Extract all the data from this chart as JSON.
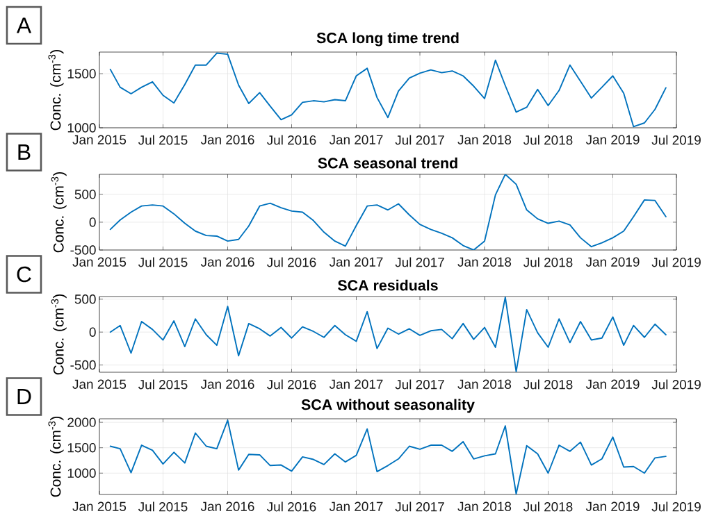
{
  "chart_data": [
    {
      "type": "line",
      "title": "SCA long time trend",
      "ylabel": "Conc. (cm$^{-3}$)",
      "annotations": [
        "A"
      ],
      "color": "#0072bd",
      "grid": true,
      "x": [
        "2015-02",
        "2015-03",
        "2015-04",
        "2015-05",
        "2015-06",
        "2015-07",
        "2015-08",
        "2015-09",
        "2015-10",
        "2015-11",
        "2015-12",
        "2016-01",
        "2016-02",
        "2016-03",
        "2016-04",
        "2016-05",
        "2016-06",
        "2016-07",
        "2016-08",
        "2016-09",
        "2016-10",
        "2016-11",
        "2016-12",
        "2017-01",
        "2017-02",
        "2017-03",
        "2017-04",
        "2017-05",
        "2017-06",
        "2017-07",
        "2017-08",
        "2017-09",
        "2017-10",
        "2017-11",
        "2017-12",
        "2018-01",
        "2018-02",
        "2018-03",
        "2018-04",
        "2018-05",
        "2018-06",
        "2018-07",
        "2018-08",
        "2018-09",
        "2018-10",
        "2018-11",
        "2018-12",
        "2019-01",
        "2019-02",
        "2019-03",
        "2019-04",
        "2019-05",
        "2019-06"
      ],
      "values": [
        1540,
        1375,
        1315,
        1375,
        1425,
        1300,
        1230,
        1400,
        1580,
        1580,
        1690,
        1680,
        1395,
        1225,
        1325,
        1200,
        1075,
        1120,
        1235,
        1250,
        1240,
        1260,
        1250,
        1480,
        1550,
        1280,
        1095,
        1340,
        1460,
        1505,
        1535,
        1510,
        1525,
        1480,
        1385,
        1270,
        1625,
        1390,
        1145,
        1190,
        1355,
        1205,
        1345,
        1580,
        1430,
        1275,
        1375,
        1480,
        1320,
        1010,
        1045,
        1170,
        1370
      ],
      "xlim": [
        "2015-01",
        "2019-07"
      ],
      "xticks": [
        {
          "value": "2015-01",
          "label": "Jan 2015"
        },
        {
          "value": "2015-07",
          "label": "Jul 2015"
        },
        {
          "value": "2016-01",
          "label": "Jan 2016"
        },
        {
          "value": "2016-07",
          "label": "Jul 2016"
        },
        {
          "value": "2017-01",
          "label": "Jan 2017"
        },
        {
          "value": "2017-07",
          "label": "Jul 2017"
        },
        {
          "value": "2018-01",
          "label": "Jan 2018"
        },
        {
          "value": "2018-07",
          "label": "Jul 2018"
        },
        {
          "value": "2019-01",
          "label": "Jan 2019"
        },
        {
          "value": "2019-07",
          "label": "Jul 2019"
        }
      ],
      "ylim": [
        1000,
        1700
      ],
      "yticks": [
        1000,
        1500
      ]
    },
    {
      "type": "line",
      "title": "SCA seasonal trend",
      "ylabel": "Conc. (cm$^{-3}$)",
      "annotations": [
        "B"
      ],
      "color": "#0072bd",
      "grid": true,
      "x": [
        "2015-02",
        "2015-03",
        "2015-04",
        "2015-05",
        "2015-06",
        "2015-07",
        "2015-08",
        "2015-09",
        "2015-10",
        "2015-11",
        "2015-12",
        "2016-01",
        "2016-02",
        "2016-03",
        "2016-04",
        "2016-05",
        "2016-06",
        "2016-07",
        "2016-08",
        "2016-09",
        "2016-10",
        "2016-11",
        "2016-12",
        "2017-01",
        "2017-02",
        "2017-03",
        "2017-04",
        "2017-05",
        "2017-06",
        "2017-07",
        "2017-08",
        "2017-09",
        "2017-10",
        "2017-11",
        "2017-12",
        "2018-01",
        "2018-02",
        "2018-03",
        "2018-04",
        "2018-05",
        "2018-06",
        "2018-07",
        "2018-08",
        "2018-09",
        "2018-10",
        "2018-11",
        "2018-12",
        "2019-01",
        "2019-02",
        "2019-03",
        "2019-04",
        "2019-05",
        "2019-06"
      ],
      "values": [
        -130,
        40,
        180,
        290,
        310,
        290,
        150,
        -20,
        -160,
        -240,
        -250,
        -340,
        -310,
        -70,
        290,
        340,
        260,
        200,
        180,
        30,
        -180,
        -340,
        -430,
        -60,
        290,
        310,
        220,
        330,
        130,
        -40,
        -130,
        -200,
        -280,
        -420,
        -500,
        -340,
        490,
        860,
        680,
        220,
        60,
        -20,
        20,
        -50,
        -280,
        -440,
        -370,
        -280,
        -160,
        100,
        400,
        390,
        100
      ],
      "xlim": [
        "2015-01",
        "2019-07"
      ],
      "xticks": [
        {
          "value": "2015-01",
          "label": "Jan 2015"
        },
        {
          "value": "2015-07",
          "label": "Jul 2015"
        },
        {
          "value": "2016-01",
          "label": "Jan 2016"
        },
        {
          "value": "2016-07",
          "label": "Jul 2016"
        },
        {
          "value": "2017-01",
          "label": "Jan 2017"
        },
        {
          "value": "2017-07",
          "label": "Jul 2017"
        },
        {
          "value": "2018-01",
          "label": "Jan 2018"
        },
        {
          "value": "2018-07",
          "label": "Jul 2018"
        },
        {
          "value": "2019-01",
          "label": "Jan 2019"
        },
        {
          "value": "2019-07",
          "label": "Jul 2019"
        }
      ],
      "ylim": [
        -500,
        860
      ],
      "yticks": [
        -500,
        0,
        500
      ]
    },
    {
      "type": "line",
      "title": "SCA residuals",
      "ylabel": "Conc. (cm$^{-3}$)",
      "annotations": [
        "C"
      ],
      "color": "#0072bd",
      "grid": true,
      "x": [
        "2015-02",
        "2015-03",
        "2015-04",
        "2015-05",
        "2015-06",
        "2015-07",
        "2015-08",
        "2015-09",
        "2015-10",
        "2015-11",
        "2015-12",
        "2016-01",
        "2016-02",
        "2016-03",
        "2016-04",
        "2016-05",
        "2016-06",
        "2016-07",
        "2016-08",
        "2016-09",
        "2016-10",
        "2016-11",
        "2016-12",
        "2017-01",
        "2017-02",
        "2017-03",
        "2017-04",
        "2017-05",
        "2017-06",
        "2017-07",
        "2017-08",
        "2017-09",
        "2017-10",
        "2017-11",
        "2017-12",
        "2018-01",
        "2018-02",
        "2018-03",
        "2018-04",
        "2018-05",
        "2018-06",
        "2018-07",
        "2018-08",
        "2018-09",
        "2018-10",
        "2018-11",
        "2018-12",
        "2019-01",
        "2019-02",
        "2019-03",
        "2019-04",
        "2019-05",
        "2019-06"
      ],
      "values": [
        0,
        100,
        -320,
        160,
        40,
        -120,
        170,
        -220,
        200,
        -40,
        -200,
        390,
        -360,
        130,
        50,
        -60,
        70,
        -90,
        80,
        10,
        -80,
        100,
        -40,
        -140,
        310,
        -250,
        60,
        -30,
        50,
        -50,
        20,
        40,
        -100,
        130,
        -110,
        70,
        -230,
        530,
        -600,
        340,
        -10,
        -230,
        200,
        -160,
        160,
        -120,
        -90,
        230,
        -200,
        100,
        -80,
        120,
        -40
      ],
      "xlim": [
        "2015-01",
        "2019-07"
      ],
      "xticks": [
        {
          "value": "2015-01",
          "label": "Jan 2015"
        },
        {
          "value": "2015-07",
          "label": "Jul 2015"
        },
        {
          "value": "2016-01",
          "label": "Jan 2016"
        },
        {
          "value": "2016-07",
          "label": "Jul 2016"
        },
        {
          "value": "2017-01",
          "label": "Jan 2017"
        },
        {
          "value": "2017-07",
          "label": "Jul 2017"
        },
        {
          "value": "2018-01",
          "label": "Jan 2018"
        },
        {
          "value": "2018-07",
          "label": "Jul 2018"
        },
        {
          "value": "2019-01",
          "label": "Jan 2019"
        },
        {
          "value": "2019-07",
          "label": "Jul 2019"
        }
      ],
      "ylim": [
        -610,
        540
      ],
      "yticks": [
        -500,
        0,
        500
      ]
    },
    {
      "type": "line",
      "title": "SCA without seasonality",
      "ylabel": "Conc. (cm$^{-3}$)",
      "annotations": [
        "D"
      ],
      "color": "#0072bd",
      "grid": true,
      "x": [
        "2015-02",
        "2015-03",
        "2015-04",
        "2015-05",
        "2015-06",
        "2015-07",
        "2015-08",
        "2015-09",
        "2015-10",
        "2015-11",
        "2015-12",
        "2016-01",
        "2016-02",
        "2016-03",
        "2016-04",
        "2016-05",
        "2016-06",
        "2016-07",
        "2016-08",
        "2016-09",
        "2016-10",
        "2016-11",
        "2016-12",
        "2017-01",
        "2017-02",
        "2017-03",
        "2017-04",
        "2017-05",
        "2017-06",
        "2017-07",
        "2017-08",
        "2017-09",
        "2017-10",
        "2017-11",
        "2017-12",
        "2018-01",
        "2018-02",
        "2018-03",
        "2018-04",
        "2018-05",
        "2018-06",
        "2018-07",
        "2018-08",
        "2018-09",
        "2018-10",
        "2018-11",
        "2018-12",
        "2019-01",
        "2019-02",
        "2019-03",
        "2019-04",
        "2019-05",
        "2019-06"
      ],
      "values": [
        1530,
        1480,
        1010,
        1550,
        1450,
        1180,
        1410,
        1200,
        1790,
        1530,
        1480,
        2040,
        1060,
        1370,
        1360,
        1150,
        1160,
        1040,
        1320,
        1270,
        1170,
        1380,
        1220,
        1350,
        1870,
        1030,
        1150,
        1280,
        1530,
        1470,
        1550,
        1550,
        1430,
        1620,
        1280,
        1340,
        1380,
        1930,
        590,
        1540,
        1380,
        1000,
        1550,
        1430,
        1610,
        1160,
        1280,
        1710,
        1120,
        1130,
        1000,
        1300,
        1330
      ],
      "xlim": [
        "2015-01",
        "2019-07"
      ],
      "xticks": [
        {
          "value": "2015-01",
          "label": "Jan 2015"
        },
        {
          "value": "2015-07",
          "label": "Jul 2015"
        },
        {
          "value": "2016-01",
          "label": "Jan 2016"
        },
        {
          "value": "2016-07",
          "label": "Jul 2016"
        },
        {
          "value": "2017-01",
          "label": "Jan 2017"
        },
        {
          "value": "2017-07",
          "label": "Jul 2017"
        },
        {
          "value": "2018-01",
          "label": "Jan 2018"
        },
        {
          "value": "2018-07",
          "label": "Jul 2018"
        },
        {
          "value": "2019-01",
          "label": "Jan 2019"
        },
        {
          "value": "2019-07",
          "label": "Jul 2019"
        }
      ],
      "ylim": [
        580,
        2070
      ],
      "yticks": [
        1000,
        1500,
        2000
      ]
    }
  ]
}
